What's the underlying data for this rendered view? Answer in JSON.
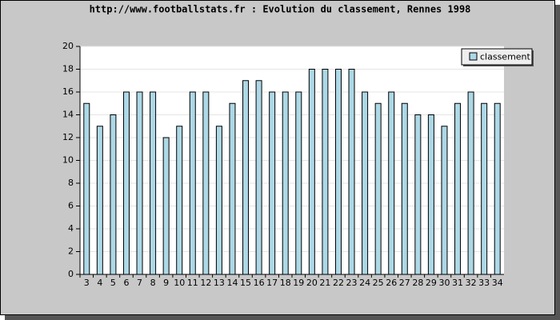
{
  "chart_data": {
    "type": "bar",
    "title": "http://www.footballstats.fr : Evolution du classement, Rennes 1998",
    "categories": [
      "3",
      "4",
      "5",
      "6",
      "7",
      "8",
      "9",
      "10",
      "11",
      "12",
      "13",
      "14",
      "15",
      "16",
      "17",
      "18",
      "19",
      "20",
      "21",
      "22",
      "23",
      "24",
      "25",
      "26",
      "27",
      "28",
      "29",
      "30",
      "31",
      "32",
      "33",
      "34"
    ],
    "series": [
      {
        "name": "classement",
        "color": "#add8e6",
        "values": [
          15,
          13,
          14,
          16,
          16,
          16,
          12,
          13,
          16,
          16,
          13,
          15,
          17,
          17,
          16,
          16,
          16,
          18,
          18,
          18,
          18,
          16,
          15,
          16,
          15,
          14,
          14,
          13,
          15,
          16,
          15,
          15
        ]
      }
    ],
    "ylim": [
      0,
      20
    ],
    "yticks": [
      0,
      2,
      4,
      6,
      8,
      10,
      12,
      14,
      16,
      18,
      20
    ],
    "grid": true,
    "legend": "top-right"
  }
}
